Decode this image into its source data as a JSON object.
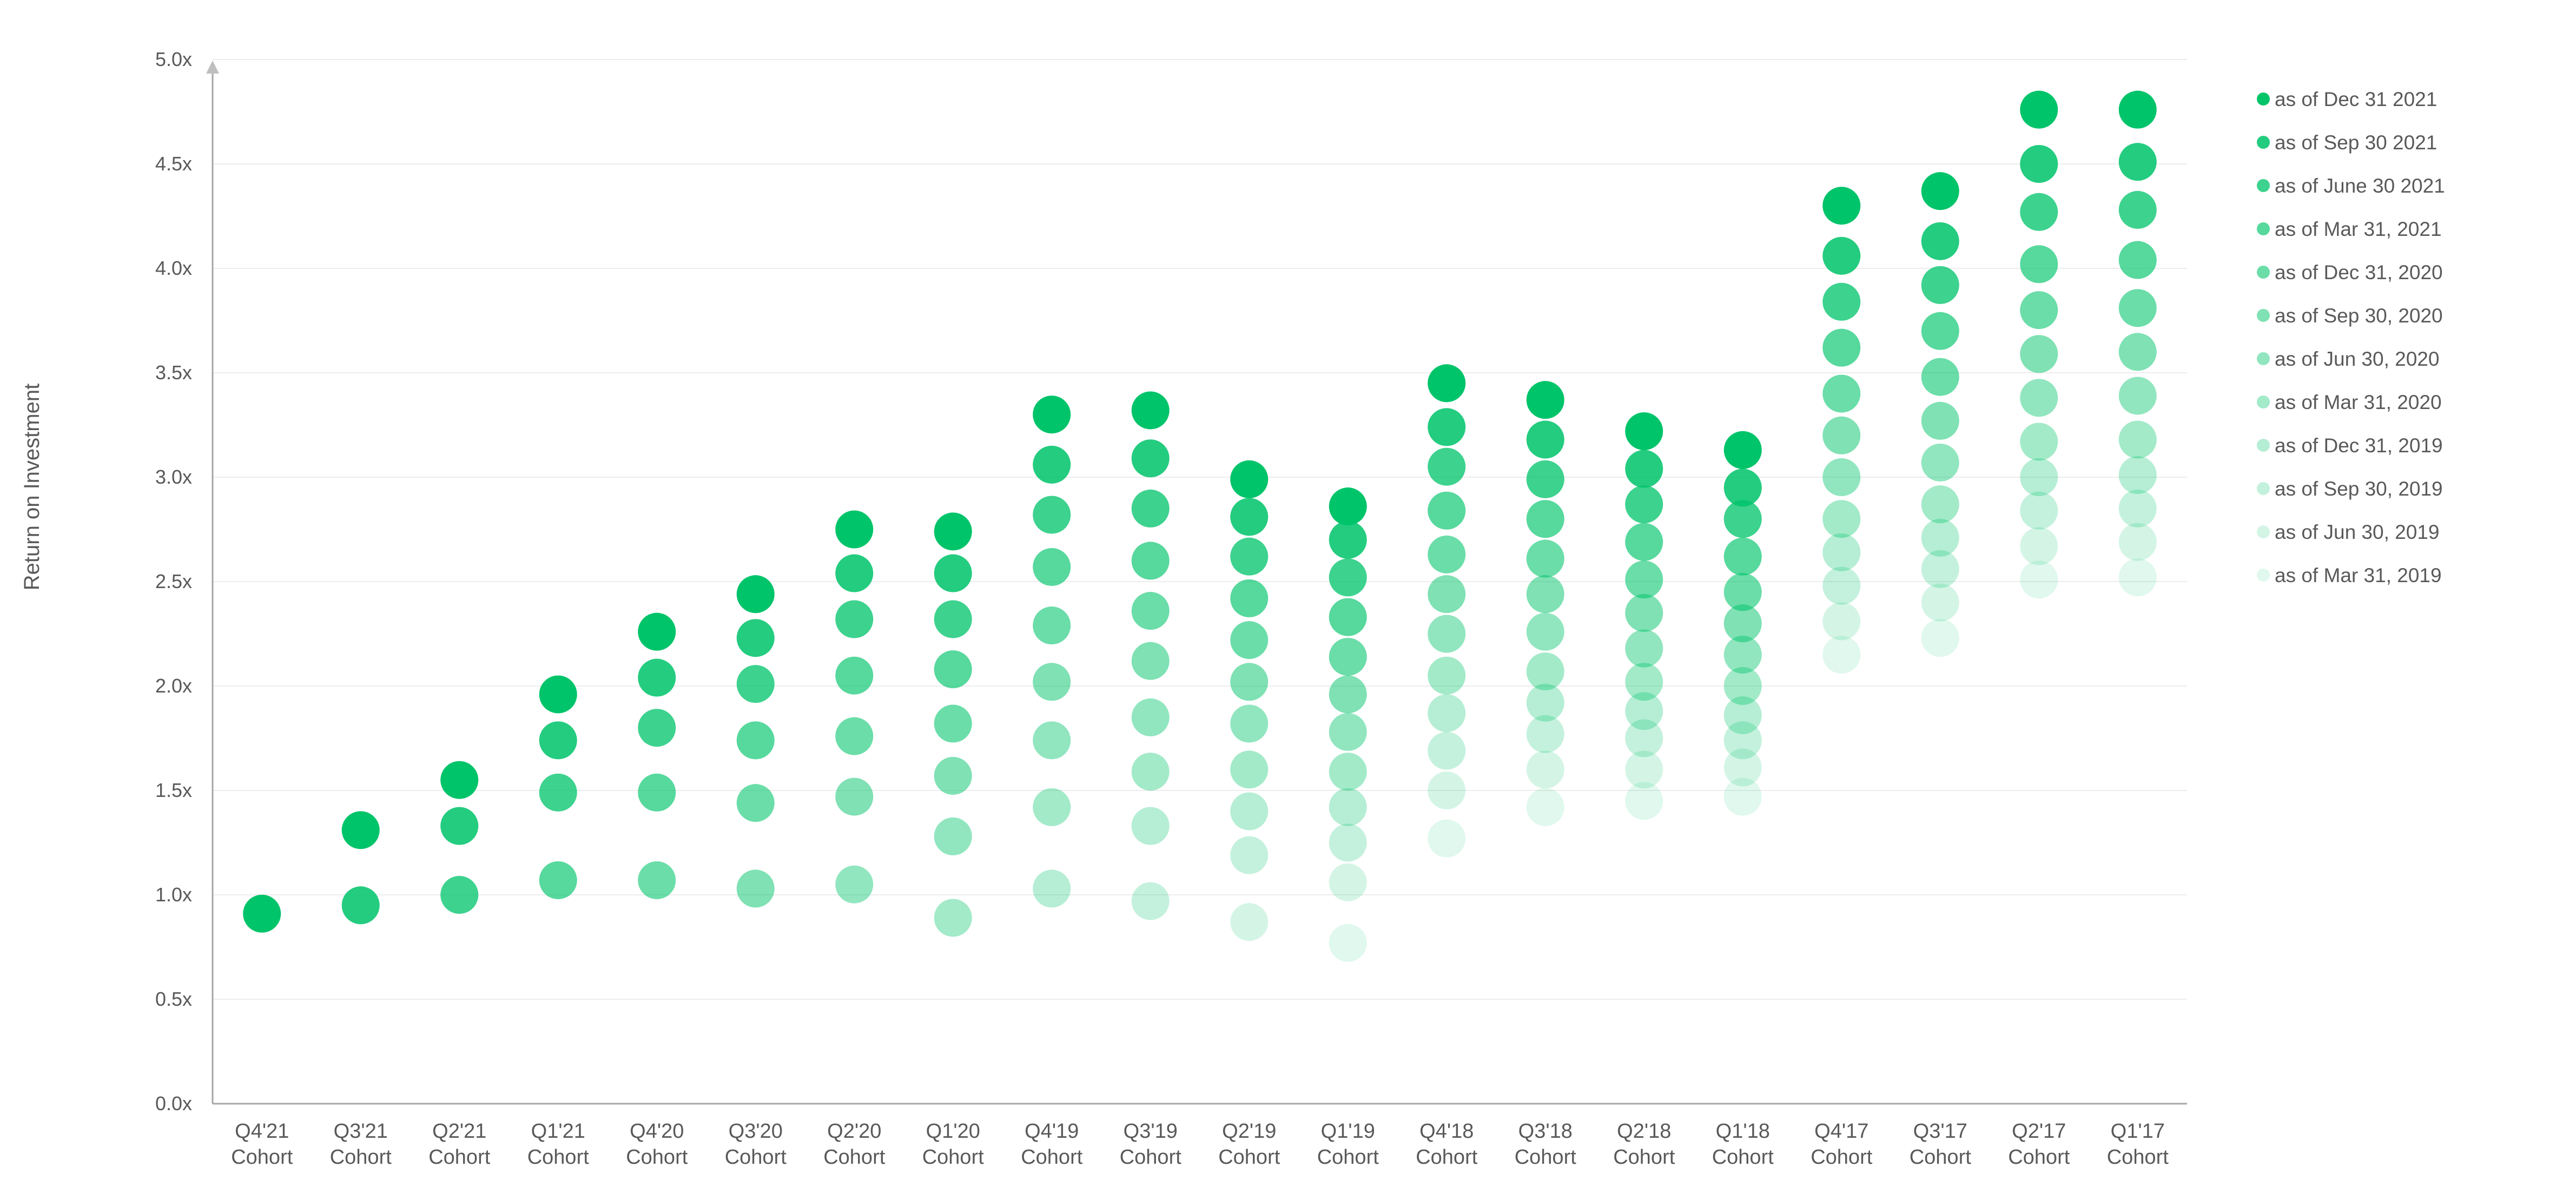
{
  "chart_data": {
    "type": "scatter",
    "title": "",
    "xlabel": "",
    "ylabel": "Return on Investment",
    "ylim": [
      0,
      5
    ],
    "yticks": [
      "0.0x",
      "0.5x",
      "1.0x",
      "1.5x",
      "2.0x",
      "2.5x",
      "3.0x",
      "3.5x",
      "4.0x",
      "4.5x",
      "5.0x"
    ],
    "grid": true,
    "legend_position": "right",
    "categories": [
      [
        "Q4'21",
        "Cohort"
      ],
      [
        "Q3'21",
        "Cohort"
      ],
      [
        "Q2'21",
        "Cohort"
      ],
      [
        "Q1'21",
        "Cohort"
      ],
      [
        "Q4'20",
        "Cohort"
      ],
      [
        "Q3'20",
        "Cohort"
      ],
      [
        "Q2'20",
        "Cohort"
      ],
      [
        "Q1'20",
        "Cohort"
      ],
      [
        "Q4'19",
        "Cohort"
      ],
      [
        "Q3'19",
        "Cohort"
      ],
      [
        "Q2'19",
        "Cohort"
      ],
      [
        "Q1'19",
        "Cohort"
      ],
      [
        "Q4'18",
        "Cohort"
      ],
      [
        "Q3'18",
        "Cohort"
      ],
      [
        "Q2'18",
        "Cohort"
      ],
      [
        "Q1'18",
        "Cohort"
      ],
      [
        "Q4'17",
        "Cohort"
      ],
      [
        "Q3'17",
        "Cohort"
      ],
      [
        "Q2'17",
        "Cohort"
      ],
      [
        "Q1'17",
        "Cohort"
      ]
    ],
    "series": [
      {
        "name": "as of Dec 31 2021",
        "color": "#00C46A",
        "opacity": 1.0,
        "values": [
          0.91,
          1.31,
          1.55,
          1.96,
          2.26,
          2.44,
          2.75,
          2.74,
          3.3,
          3.32,
          2.99,
          2.86,
          3.45,
          3.37,
          3.22,
          3.13,
          4.3,
          4.37,
          4.76,
          4.76
        ]
      },
      {
        "name": "as of Sep 30 2021",
        "color": "#00C46A",
        "opacity": 0.86,
        "values": [
          null,
          0.95,
          1.33,
          1.74,
          2.04,
          2.23,
          2.54,
          2.54,
          3.06,
          3.09,
          2.81,
          2.7,
          3.24,
          3.18,
          3.04,
          2.95,
          4.06,
          4.13,
          4.5,
          4.51
        ]
      },
      {
        "name": "as of June 30 2021",
        "color": "#00C46A",
        "opacity": 0.76,
        "values": [
          null,
          null,
          1.0,
          1.49,
          1.8,
          2.01,
          2.32,
          2.32,
          2.82,
          2.85,
          2.62,
          2.52,
          3.05,
          2.99,
          2.87,
          2.8,
          3.84,
          3.92,
          4.27,
          4.28
        ]
      },
      {
        "name": "as of Mar 31, 2021",
        "color": "#00C46A",
        "opacity": 0.66,
        "values": [
          null,
          null,
          null,
          1.07,
          1.49,
          1.74,
          2.05,
          2.08,
          2.57,
          2.6,
          2.42,
          2.33,
          2.84,
          2.8,
          2.69,
          2.62,
          3.62,
          3.7,
          4.02,
          4.04
        ]
      },
      {
        "name": "as of Dec 31, 2020",
        "color": "#00C46A",
        "opacity": 0.58,
        "values": [
          null,
          null,
          null,
          null,
          1.07,
          1.44,
          1.76,
          1.82,
          2.29,
          2.36,
          2.22,
          2.14,
          2.63,
          2.61,
          2.51,
          2.45,
          3.4,
          3.48,
          3.8,
          3.81
        ]
      },
      {
        "name": "as of Sep 30, 2020",
        "color": "#00C46A",
        "opacity": 0.5,
        "values": [
          null,
          null,
          null,
          null,
          null,
          1.03,
          1.47,
          1.57,
          2.02,
          2.12,
          2.02,
          1.96,
          2.44,
          2.44,
          2.35,
          2.3,
          3.2,
          3.27,
          3.59,
          3.6
        ]
      },
      {
        "name": "as of Jun 30, 2020",
        "color": "#00C46A",
        "opacity": 0.43,
        "values": [
          null,
          null,
          null,
          null,
          null,
          null,
          1.05,
          1.28,
          1.74,
          1.85,
          1.82,
          1.78,
          2.25,
          2.26,
          2.18,
          2.15,
          3.0,
          3.07,
          3.38,
          3.39
        ]
      },
      {
        "name": "as of Mar 31, 2020",
        "color": "#00C46A",
        "opacity": 0.36,
        "values": [
          null,
          null,
          null,
          null,
          null,
          null,
          null,
          0.89,
          1.42,
          1.59,
          1.6,
          1.59,
          2.05,
          2.07,
          2.02,
          2.0,
          2.8,
          2.87,
          3.17,
          3.18
        ]
      },
      {
        "name": "as of Dec 31, 2019",
        "color": "#00C46A",
        "opacity": 0.29,
        "values": [
          null,
          null,
          null,
          null,
          null,
          null,
          null,
          null,
          1.03,
          1.33,
          1.4,
          1.42,
          1.87,
          1.92,
          1.88,
          1.86,
          2.64,
          2.71,
          3.0,
          3.01
        ]
      },
      {
        "name": "as of Sep 30, 2019",
        "color": "#00C46A",
        "opacity": 0.23,
        "values": [
          null,
          null,
          null,
          null,
          null,
          null,
          null,
          null,
          null,
          0.97,
          1.19,
          1.25,
          1.69,
          1.77,
          1.75,
          1.74,
          2.48,
          2.56,
          2.84,
          2.85
        ]
      },
      {
        "name": "as of Jun 30, 2019",
        "color": "#00C46A",
        "opacity": 0.17,
        "values": [
          null,
          null,
          null,
          null,
          null,
          null,
          null,
          null,
          null,
          null,
          0.87,
          1.06,
          1.5,
          1.6,
          1.6,
          1.61,
          2.31,
          2.4,
          2.67,
          2.69
        ]
      },
      {
        "name": "as of Mar 31, 2019",
        "color": "#00C46A",
        "opacity": 0.12,
        "values": [
          null,
          null,
          null,
          null,
          null,
          null,
          null,
          null,
          null,
          null,
          null,
          0.77,
          1.27,
          1.42,
          1.45,
          1.47,
          2.15,
          2.23,
          2.51,
          2.52
        ]
      }
    ]
  }
}
